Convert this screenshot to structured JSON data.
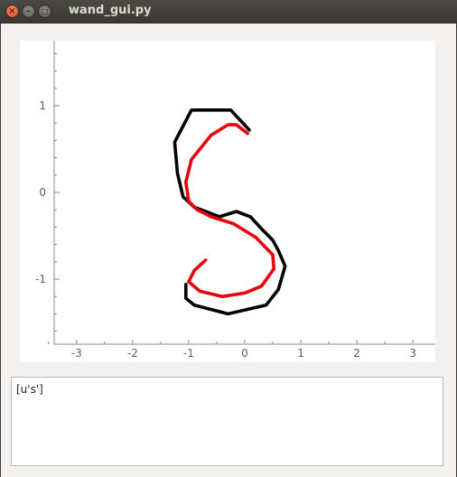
{
  "window": {
    "title": "wand_gui.py",
    "close_glyph": "×",
    "minimize_glyph": "–",
    "maximize_glyph": "□"
  },
  "output": {
    "text": "[u's']"
  },
  "chart_data": {
    "type": "line",
    "xlim": [
      -3.4,
      3.4
    ],
    "ylim": [
      -1.75,
      1.75
    ],
    "xticks": [
      -3,
      -2,
      -1,
      0,
      1,
      2,
      3
    ],
    "yticks": [
      -1,
      0,
      1
    ],
    "xtick_labels": [
      "-3",
      "-2",
      "-1",
      "0",
      "1",
      "2",
      "3"
    ],
    "ytick_labels": [
      "-1",
      "0",
      "1"
    ],
    "grid": false,
    "colors": {
      "raw": "#000000",
      "smoothed": "#e8000b",
      "axis": "#888888"
    },
    "series": [
      {
        "color": "#000000",
        "x": [
          0.08,
          -0.25,
          -0.95,
          -1.25,
          -1.2,
          -1.1,
          -0.9,
          -0.7,
          -0.45,
          -0.15,
          0.1,
          0.3,
          0.5,
          0.6,
          0.72,
          0.6,
          0.38,
          -0.3,
          -0.9,
          -1.05,
          -1.05
        ],
        "y": [
          0.72,
          0.95,
          0.95,
          0.58,
          0.22,
          -0.05,
          -0.17,
          -0.22,
          -0.28,
          -0.22,
          -0.28,
          -0.42,
          -0.55,
          -0.67,
          -0.85,
          -1.12,
          -1.3,
          -1.4,
          -1.3,
          -1.22,
          -1.06
        ]
      },
      {
        "color": "#e8000b",
        "x": [
          0.05,
          -0.15,
          -0.3,
          -0.6,
          -0.95,
          -1.05,
          -1.0,
          -0.85,
          -0.6,
          -0.2,
          0.2,
          0.5,
          0.52,
          0.3,
          0.0,
          -0.4,
          -0.8,
          -1.0,
          -0.9,
          -0.7
        ],
        "y": [
          0.68,
          0.78,
          0.78,
          0.66,
          0.38,
          0.12,
          -0.1,
          -0.2,
          -0.28,
          -0.36,
          -0.52,
          -0.72,
          -0.88,
          -1.08,
          -1.16,
          -1.2,
          -1.14,
          -1.03,
          -0.9,
          -0.78
        ]
      }
    ]
  }
}
